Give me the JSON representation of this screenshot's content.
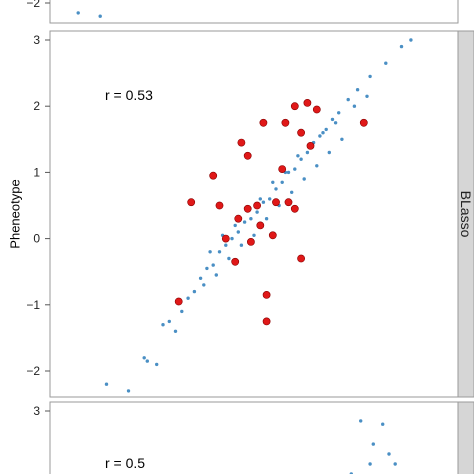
{
  "chart_data": [
    {
      "type": "scatter",
      "ylim": [
        -2.4,
        3.1
      ],
      "yticks": [
        -2,
        -1,
        0,
        1,
        2,
        3
      ],
      "tick_labels": [
        "−2",
        "−1",
        "0",
        "1",
        "2",
        "3"
      ],
      "ylabel": "Pheneotype",
      "strip_label": "",
      "annotation": "",
      "series": [
        {
          "color": "#4a8fc4",
          "points": [
            [
              -2.55,
              -2.15
            ],
            [
              -2.2,
              -2.2
            ]
          ]
        }
      ]
    },
    {
      "type": "scatter",
      "ylim": [
        -2.4,
        3.1
      ],
      "yticks": [
        -2,
        -1,
        0,
        1,
        2,
        3
      ],
      "tick_labels": [
        "−2",
        "−1",
        "0",
        "1",
        "2",
        "3"
      ],
      "ylabel": "Pheneotype",
      "strip_label": "BLasso",
      "annotation": "r = 0.53",
      "series": [
        {
          "color": "#4a8fc4",
          "points": [
            [
              -2.1,
              -2.2
            ],
            [
              -1.75,
              -2.3
            ],
            [
              -1.5,
              -1.8
            ],
            [
              -1.45,
              -1.85
            ],
            [
              -1.3,
              -1.9
            ],
            [
              -1.2,
              -1.3
            ],
            [
              -1.1,
              -1.25
            ],
            [
              -1.0,
              -1.4
            ],
            [
              -0.9,
              -1.1
            ],
            [
              -0.8,
              -0.9
            ],
            [
              -0.7,
              -0.8
            ],
            [
              -0.6,
              -0.6
            ],
            [
              -0.5,
              -0.45
            ],
            [
              -0.4,
              -0.4
            ],
            [
              -0.3,
              -0.2
            ],
            [
              -0.2,
              -0.1
            ],
            [
              -0.1,
              0.0
            ],
            [
              0.0,
              0.1
            ],
            [
              0.1,
              0.25
            ],
            [
              0.2,
              0.3
            ],
            [
              0.3,
              0.4
            ],
            [
              0.4,
              0.55
            ],
            [
              0.5,
              0.6
            ],
            [
              0.6,
              0.75
            ],
            [
              0.7,
              0.85
            ],
            [
              0.8,
              1.0
            ],
            [
              0.9,
              1.05
            ],
            [
              1.0,
              1.2
            ],
            [
              1.1,
              1.3
            ],
            [
              1.2,
              1.45
            ],
            [
              1.3,
              1.55
            ],
            [
              1.4,
              1.65
            ],
            [
              1.5,
              1.8
            ],
            [
              1.6,
              1.9
            ],
            [
              1.75,
              2.1
            ],
            [
              1.9,
              2.25
            ],
            [
              2.1,
              2.45
            ],
            [
              2.35,
              2.65
            ],
            [
              2.6,
              2.9
            ],
            [
              2.75,
              3.0
            ],
            [
              -0.55,
              -0.7
            ],
            [
              -0.35,
              -0.55
            ],
            [
              -0.15,
              -0.3
            ],
            [
              0.05,
              -0.1
            ],
            [
              0.25,
              0.05
            ],
            [
              0.45,
              0.3
            ],
            [
              0.65,
              0.5
            ],
            [
              0.85,
              0.7
            ],
            [
              1.05,
              0.9
            ],
            [
              1.25,
              1.1
            ],
            [
              1.45,
              1.3
            ],
            [
              1.65,
              1.5
            ],
            [
              -0.45,
              -0.2
            ],
            [
              -0.25,
              0.05
            ],
            [
              -0.05,
              0.2
            ],
            [
              0.15,
              0.45
            ],
            [
              0.35,
              0.6
            ],
            [
              0.55,
              0.85
            ],
            [
              0.75,
              1.0
            ],
            [
              0.95,
              1.25
            ],
            [
              1.15,
              1.4
            ],
            [
              1.35,
              1.6
            ],
            [
              1.55,
              1.75
            ],
            [
              1.85,
              2.0
            ],
            [
              2.05,
              2.15
            ]
          ]
        },
        {
          "color": "#e01818",
          "points": [
            [
              -0.95,
              -0.95
            ],
            [
              -0.75,
              0.55
            ],
            [
              -0.4,
              0.95
            ],
            [
              -0.3,
              0.5
            ],
            [
              -0.2,
              0.0
            ],
            [
              -0.05,
              -0.35
            ],
            [
              0.0,
              0.3
            ],
            [
              0.05,
              1.45
            ],
            [
              0.15,
              1.25
            ],
            [
              0.15,
              0.45
            ],
            [
              0.2,
              -0.05
            ],
            [
              0.3,
              0.5
            ],
            [
              0.35,
              0.2
            ],
            [
              0.4,
              1.75
            ],
            [
              0.45,
              -0.85
            ],
            [
              0.45,
              -1.25
            ],
            [
              0.55,
              0.05
            ],
            [
              0.6,
              0.55
            ],
            [
              0.7,
              1.05
            ],
            [
              0.75,
              1.75
            ],
            [
              0.9,
              2.0
            ],
            [
              1.0,
              1.6
            ],
            [
              1.1,
              2.05
            ],
            [
              1.15,
              1.4
            ],
            [
              1.25,
              1.95
            ],
            [
              0.8,
              0.55
            ],
            [
              0.9,
              0.45
            ],
            [
              1.0,
              -0.3
            ],
            [
              2.0,
              1.75
            ]
          ]
        }
      ]
    },
    {
      "type": "scatter",
      "ylim": [
        -2.4,
        3.1
      ],
      "yticks": [
        3
      ],
      "tick_labels": [
        "3"
      ],
      "ylabel": "",
      "strip_label": "",
      "annotation": "r = 0.5",
      "series": [
        {
          "color": "#4a8fc4",
          "points": [
            [
              1.95,
              2.85
            ],
            [
              2.15,
              2.5
            ],
            [
              2.3,
              2.8
            ],
            [
              2.4,
              2.35
            ],
            [
              2.1,
              2.2
            ],
            [
              1.8,
              2.05
            ],
            [
              1.6,
              1.95
            ],
            [
              1.4,
              1.85
            ],
            [
              1.25,
              1.75
            ],
            [
              1.05,
              1.65
            ],
            [
              0.9,
              1.62
            ],
            [
              2.5,
              2.2
            ],
            [
              2.2,
              1.9
            ]
          ]
        },
        {
          "color": "#e01818",
          "points": [
            [
              0.85,
              1.8
            ],
            [
              1.1,
              1.65
            ],
            [
              1.45,
              1.6
            ]
          ]
        }
      ]
    }
  ]
}
